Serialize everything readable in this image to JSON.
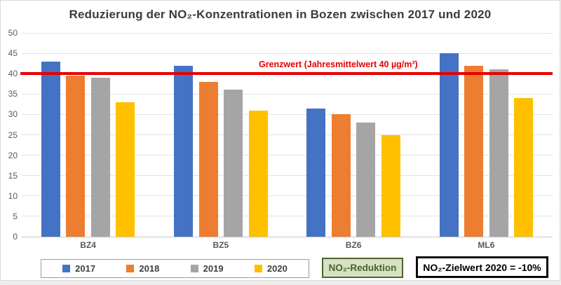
{
  "title": "Reduzierung der NO₂-Konzentrationen in Bozen zwischen 2017 und 2020",
  "chart_data": {
    "type": "bar",
    "title": "Reduzierung der NO₂-Konzentrationen in Bozen zwischen 2017 und 2020",
    "categories": [
      "BZ4",
      "BZ5",
      "BZ6",
      "ML6"
    ],
    "series": [
      {
        "name": "2017",
        "color": "#4472C4",
        "values": [
          43,
          42,
          31.5,
          45
        ]
      },
      {
        "name": "2018",
        "color": "#ED7D31",
        "values": [
          39.5,
          38,
          30,
          42
        ]
      },
      {
        "name": "2019",
        "color": "#A5A5A5",
        "values": [
          39,
          36,
          28,
          41
        ]
      },
      {
        "name": "2020",
        "color": "#FFC000",
        "values": [
          33,
          31,
          25,
          34
        ]
      }
    ],
    "xlabel": "",
    "ylabel": "",
    "ylim": [
      0,
      50
    ],
    "ytick_step": 5,
    "grid": true,
    "legend_position": "bottom",
    "reference_line": {
      "value": 40,
      "color": "#E60000",
      "label": "Grenzwert (Jahresmittelwert 40 µg/m³)"
    }
  },
  "annotations": {
    "reduction_box_label": "NO₂-Reduktion",
    "target_box_label": "NO₂-Zielwert 2020 = -10%"
  },
  "colors": {
    "series_2017": "#4472C4",
    "series_2018": "#ED7D31",
    "series_2019": "#A5A5A5",
    "series_2020": "#FFC000",
    "limit_line": "#E60000",
    "reduction_box_fill": "#D6E2C4",
    "reduction_box_border": "#4F6228",
    "target_box_border": "#0A0A0A",
    "gridline": "#E2E2E2"
  }
}
